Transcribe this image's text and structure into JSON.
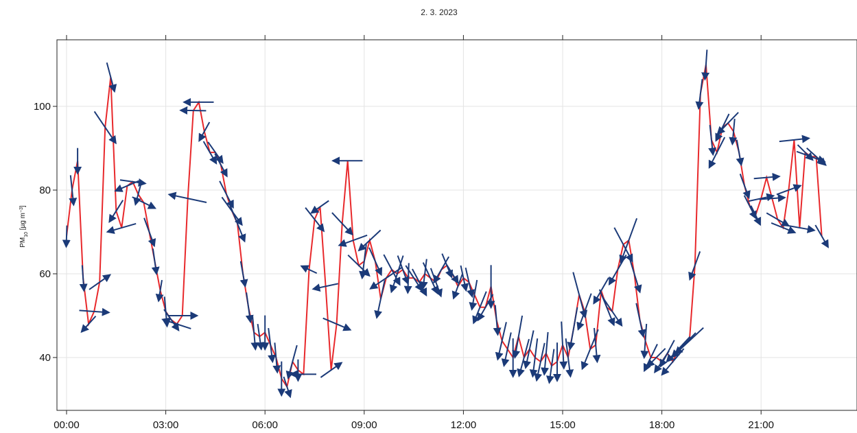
{
  "chart_data": {
    "type": "line",
    "title": "2. 3. 2023",
    "ylabel": "PM₁₀ [µg m⁻³]",
    "ylabel_parts": {
      "main": "PM",
      "sub": "10",
      "unit_open": " [µg m",
      "sup": "−3",
      "unit_close": "]"
    },
    "xlabel": "",
    "xlim": [
      "00:00",
      "24:00"
    ],
    "ylim": [
      27,
      116
    ],
    "x_ticks": [
      "00:00",
      "03:00",
      "06:00",
      "09:00",
      "12:00",
      "15:00",
      "18:00",
      "21:00"
    ],
    "y_ticks": [
      40,
      60,
      80,
      100
    ],
    "grid": true,
    "colors": {
      "line": "#e8282b",
      "arrows": "#1b3a78",
      "grid": "#e3e3e3",
      "frame": "#222222"
    },
    "series": [
      {
        "line_points": [
          [
            "00:00",
            69
          ],
          [
            "00:10",
            80
          ],
          [
            "00:20",
            87
          ],
          [
            "00:30",
            59
          ],
          [
            "00:40",
            48
          ],
          [
            "00:50",
            51
          ],
          [
            "01:00",
            58
          ],
          [
            "01:10",
            95
          ],
          [
            "01:20",
            107
          ],
          [
            "01:30",
            75
          ],
          [
            "01:40",
            71
          ],
          [
            "01:50",
            81
          ],
          [
            "02:00",
            82
          ],
          [
            "02:10",
            79
          ],
          [
            "02:20",
            77
          ],
          [
            "02:30",
            70
          ],
          [
            "02:40",
            63
          ],
          [
            "02:50",
            56
          ],
          [
            "03:00",
            51
          ],
          [
            "03:10",
            49
          ],
          [
            "03:20",
            48
          ],
          [
            "03:30",
            50
          ],
          [
            "03:40",
            78
          ],
          [
            "03:50",
            99
          ],
          [
            "04:00",
            101
          ],
          [
            "04:10",
            94
          ],
          [
            "04:20",
            89
          ],
          [
            "04:30",
            89
          ],
          [
            "04:40",
            86
          ],
          [
            "04:50",
            79
          ],
          [
            "05:00",
            75
          ],
          [
            "05:10",
            72
          ],
          [
            "05:20",
            60
          ],
          [
            "05:30",
            52
          ],
          [
            "05:40",
            46
          ],
          [
            "05:50",
            45
          ],
          [
            "06:00",
            46
          ],
          [
            "06:10",
            43
          ],
          [
            "06:20",
            40
          ],
          [
            "06:30",
            35
          ],
          [
            "06:40",
            33
          ],
          [
            "06:50",
            39
          ],
          [
            "07:00",
            37
          ],
          [
            "07:10",
            36
          ],
          [
            "07:20",
            61
          ],
          [
            "07:30",
            73
          ],
          [
            "07:40",
            76
          ],
          [
            "07:50",
            57
          ],
          [
            "08:00",
            37
          ],
          [
            "08:10",
            48
          ],
          [
            "08:20",
            72
          ],
          [
            "08:30",
            87
          ],
          [
            "08:40",
            68
          ],
          [
            "08:50",
            62
          ],
          [
            "09:00",
            63
          ],
          [
            "09:10",
            68
          ],
          [
            "09:20",
            63
          ],
          [
            "09:30",
            54
          ],
          [
            "09:40",
            59
          ],
          [
            "09:50",
            61
          ],
          [
            "10:00",
            60
          ],
          [
            "10:10",
            61
          ],
          [
            "10:20",
            59
          ],
          [
            "10:30",
            59
          ],
          [
            "10:40",
            58
          ],
          [
            "10:50",
            60
          ],
          [
            "11:00",
            59
          ],
          [
            "11:10",
            58
          ],
          [
            "11:20",
            61
          ],
          [
            "11:30",
            62
          ],
          [
            "11:40",
            60
          ],
          [
            "11:50",
            57
          ],
          [
            "12:00",
            59
          ],
          [
            "12:10",
            58
          ],
          [
            "12:20",
            55
          ],
          [
            "12:30",
            52
          ],
          [
            "12:40",
            52
          ],
          [
            "12:50",
            57
          ],
          [
            "13:00",
            49
          ],
          [
            "13:10",
            44
          ],
          [
            "13:20",
            42
          ],
          [
            "13:30",
            40
          ],
          [
            "13:40",
            45
          ],
          [
            "13:50",
            40
          ],
          [
            "14:00",
            42
          ],
          [
            "14:10",
            40
          ],
          [
            "14:20",
            39
          ],
          [
            "14:30",
            41
          ],
          [
            "14:40",
            38
          ],
          [
            "14:50",
            39
          ],
          [
            "15:00",
            43
          ],
          [
            "15:10",
            40
          ],
          [
            "15:20",
            47
          ],
          [
            "15:30",
            55
          ],
          [
            "15:40",
            51
          ],
          [
            "15:50",
            42
          ],
          [
            "16:00",
            43
          ],
          [
            "16:10",
            56
          ],
          [
            "16:20",
            52
          ],
          [
            "16:30",
            51
          ],
          [
            "16:40",
            61
          ],
          [
            "16:50",
            67
          ],
          [
            "17:00",
            68
          ],
          [
            "17:10",
            60
          ],
          [
            "17:20",
            49
          ],
          [
            "17:30",
            44
          ],
          [
            "17:40",
            40
          ],
          [
            "17:50",
            40
          ],
          [
            "18:00",
            39
          ],
          [
            "18:10",
            41
          ],
          [
            "18:20",
            39
          ],
          [
            "18:30",
            42
          ],
          [
            "18:40",
            43
          ],
          [
            "18:50",
            44
          ],
          [
            "19:00",
            62
          ],
          [
            "19:10",
            103
          ],
          [
            "19:20",
            110
          ],
          [
            "19:30",
            92
          ],
          [
            "19:40",
            89
          ],
          [
            "19:50",
            95
          ],
          [
            "20:00",
            96
          ],
          [
            "20:10",
            94
          ],
          [
            "20:20",
            89
          ],
          [
            "20:30",
            81
          ],
          [
            "20:40",
            76
          ],
          [
            "20:50",
            74
          ],
          [
            "21:00",
            78
          ],
          [
            "21:10",
            83
          ],
          [
            "21:20",
            78
          ],
          [
            "21:30",
            73
          ],
          [
            "21:40",
            71
          ],
          [
            "21:50",
            80
          ],
          [
            "22:00",
            92
          ],
          [
            "22:10",
            71
          ],
          [
            "22:20",
            89
          ],
          [
            "22:30",
            88
          ],
          [
            "22:40",
            88
          ],
          [
            "22:50",
            69
          ]
        ]
      }
    ],
    "arrows": [
      [
        "00:00",
        69,
        5,
        268
      ],
      [
        "00:10",
        80,
        7,
        276
      ],
      [
        "00:20",
        87,
        6,
        270
      ],
      [
        "00:30",
        59,
        6,
        274
      ],
      [
        "00:40",
        48,
        5,
        228
      ],
      [
        "00:50",
        51,
        7,
        356
      ],
      [
        "01:00",
        58,
        6,
        35
      ],
      [
        "01:10",
        95,
        9,
        304
      ],
      [
        "01:20",
        107,
        7,
        285
      ],
      [
        "01:30",
        75,
        6,
        238
      ],
      [
        "01:40",
        71,
        7,
        196
      ],
      [
        "01:50",
        81,
        6,
        203
      ],
      [
        "02:00",
        82,
        6,
        352
      ],
      [
        "02:10",
        79,
        5,
        255
      ],
      [
        "02:20",
        77,
        6,
        334
      ],
      [
        "02:30",
        70,
        7,
        290
      ],
      [
        "02:40",
        63,
        6,
        278
      ],
      [
        "02:50",
        56,
        5,
        261
      ],
      [
        "03:00",
        51,
        7,
        275
      ],
      [
        "03:10",
        49,
        6,
        305
      ],
      [
        "03:20",
        48,
        7,
        162
      ],
      [
        "03:30",
        50,
        7,
        0
      ],
      [
        "03:40",
        78,
        9,
        168
      ],
      [
        "03:50",
        99,
        6,
        179
      ],
      [
        "04:00",
        101,
        7,
        180
      ],
      [
        "04:10",
        94,
        5,
        241
      ],
      [
        "04:20",
        89,
        6,
        300
      ],
      [
        "04:30",
        89,
        6,
        305
      ],
      [
        "04:40",
        86,
        6,
        298
      ],
      [
        "04:50",
        79,
        7,
        297
      ],
      [
        "05:00",
        75,
        8,
        306
      ],
      [
        "05:10",
        72,
        9,
        292
      ],
      [
        "05:20",
        60,
        6,
        280
      ],
      [
        "05:30",
        52,
        7,
        278
      ],
      [
        "05:40",
        46,
        8,
        275
      ],
      [
        "05:50",
        45,
        6,
        278
      ],
      [
        "06:00",
        46,
        8,
        270
      ],
      [
        "06:10",
        43,
        8,
        277
      ],
      [
        "06:20",
        40,
        7,
        275
      ],
      [
        "06:30",
        35,
        8,
        270
      ],
      [
        "06:40",
        33,
        5,
        288
      ],
      [
        "06:50",
        39,
        8,
        255
      ],
      [
        "07:00",
        37,
        5,
        270
      ],
      [
        "07:10",
        36,
        6,
        180
      ],
      [
        "07:20",
        61,
        4,
        155
      ],
      [
        "07:30",
        73,
        7,
        308
      ],
      [
        "07:40",
        76,
        5,
        215
      ],
      [
        "07:50",
        57,
        6,
        192
      ],
      [
        "08:00",
        37,
        6,
        35
      ],
      [
        "08:10",
        48,
        7,
        337
      ],
      [
        "08:20",
        72,
        7,
        313
      ],
      [
        "08:30",
        87,
        7,
        180
      ],
      [
        "08:40",
        68,
        7,
        200
      ],
      [
        "08:50",
        62,
        7,
        316
      ],
      [
        "09:00",
        63,
        8,
        263
      ],
      [
        "09:10",
        68,
        7,
        223
      ],
      [
        "09:20",
        63,
        7,
        294
      ],
      [
        "09:30",
        54,
        9,
        258
      ],
      [
        "09:40",
        59,
        9,
        214
      ],
      [
        "09:50",
        61,
        8,
        298
      ],
      [
        "10:00",
        60,
        9,
        252
      ],
      [
        "10:10",
        61,
        7,
        290
      ],
      [
        "10:20",
        59,
        7,
        268
      ],
      [
        "10:30",
        59,
        7,
        303
      ],
      [
        "10:40",
        58,
        7,
        298
      ],
      [
        "10:50",
        60,
        7,
        263
      ],
      [
        "11:00",
        59,
        8,
        295
      ],
      [
        "11:10",
        58,
        7,
        290
      ],
      [
        "11:20",
        61,
        7,
        240
      ],
      [
        "11:30",
        62,
        6,
        292
      ],
      [
        "11:40",
        60,
        5,
        302
      ],
      [
        "11:50",
        57,
        6,
        250
      ],
      [
        "12:00",
        59,
        6,
        282
      ],
      [
        "12:10",
        58,
        7,
        283
      ],
      [
        "12:20",
        55,
        7,
        260
      ],
      [
        "12:30",
        52,
        8,
        248
      ],
      [
        "12:40",
        52,
        7,
        240
      ],
      [
        "12:50",
        57,
        10,
        270
      ],
      [
        "13:00",
        49,
        7,
        275
      ],
      [
        "13:10",
        44,
        9,
        257
      ],
      [
        "13:20",
        42,
        8,
        258
      ],
      [
        "13:30",
        40,
        9,
        270
      ],
      [
        "13:40",
        45,
        10,
        260
      ],
      [
        "13:50",
        40,
        9,
        255
      ],
      [
        "14:00",
        42,
        9,
        258
      ],
      [
        "14:10",
        40,
        9,
        263
      ],
      [
        "14:20",
        39,
        9,
        258
      ],
      [
        "14:30",
        41,
        10,
        265
      ],
      [
        "14:40",
        38,
        8,
        262
      ],
      [
        "14:50",
        39,
        9,
        270
      ],
      [
        "15:00",
        43,
        11,
        273
      ],
      [
        "15:10",
        40,
        9,
        277
      ],
      [
        "15:20",
        47,
        10,
        260
      ],
      [
        "15:30",
        55,
        11,
        285
      ],
      [
        "15:40",
        51,
        9,
        250
      ],
      [
        "15:50",
        42,
        10,
        248
      ],
      [
        "16:00",
        43,
        8,
        275
      ],
      [
        "16:10",
        56,
        7,
        240
      ],
      [
        "16:20",
        52,
        9,
        292
      ],
      [
        "16:30",
        51,
        8,
        304
      ],
      [
        "16:40",
        61,
        8,
        240
      ],
      [
        "16:50",
        67,
        9,
        298
      ],
      [
        "17:00",
        68,
        11,
        250
      ],
      [
        "17:10",
        60,
        9,
        287
      ],
      [
        "17:20",
        49,
        8,
        282
      ],
      [
        "17:30",
        44,
        8,
        266
      ],
      [
        "17:40",
        40,
        7,
        244
      ],
      [
        "17:50",
        40,
        6,
        225
      ],
      [
        "18:00",
        39,
        6,
        236
      ],
      [
        "18:10",
        41,
        7,
        242
      ],
      [
        "18:20",
        39,
        8,
        230
      ],
      [
        "18:30",
        42,
        8,
        227
      ],
      [
        "18:40",
        43,
        8,
        226
      ],
      [
        "18:50",
        44,
        9,
        223
      ],
      [
        "19:00",
        62,
        7,
        250
      ],
      [
        "19:10",
        103,
        7,
        263
      ],
      [
        "19:20",
        110,
        7,
        266
      ],
      [
        "19:30",
        92,
        7,
        276
      ],
      [
        "19:40",
        89,
        8,
        243
      ],
      [
        "19:50",
        95,
        7,
        244
      ],
      [
        "20:00",
        96,
        7,
        226
      ],
      [
        "20:10",
        94,
        6,
        265
      ],
      [
        "20:20",
        89,
        6,
        280
      ],
      [
        "20:30",
        81,
        6,
        290
      ],
      [
        "20:40",
        76,
        6,
        297
      ],
      [
        "20:50",
        74,
        5,
        296
      ],
      [
        "21:00",
        78,
        6,
        12
      ],
      [
        "21:10",
        83,
        6,
        5
      ],
      [
        "21:20",
        78,
        6,
        4
      ],
      [
        "21:30",
        73,
        6,
        330
      ],
      [
        "21:40",
        71,
        6,
        338
      ],
      [
        "21:50",
        80,
        6,
        20
      ],
      [
        "22:00",
        92,
        7,
        6
      ],
      [
        "22:10",
        71,
        7,
        350
      ],
      [
        "22:20",
        89,
        5,
        315
      ],
      [
        "22:30",
        88,
        7,
        340
      ],
      [
        "22:40",
        88,
        6,
        318
      ],
      [
        "22:50",
        69,
        6,
        300
      ]
    ]
  }
}
